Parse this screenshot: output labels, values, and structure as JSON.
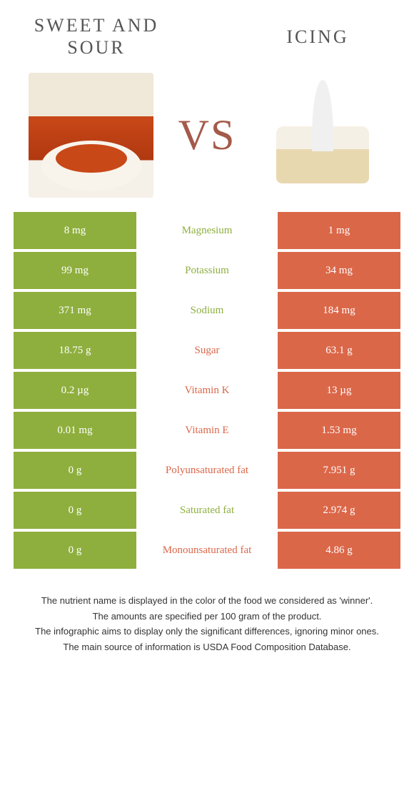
{
  "header": {
    "left_title": "SWEET AND SOUR",
    "right_title": "ICING",
    "vs": "VS"
  },
  "colors": {
    "left": "#8eaf3e",
    "right": "#db6749",
    "vs_text": "#a45a4a"
  },
  "rows": [
    {
      "left": "8 mg",
      "label": "Magnesium",
      "right": "1 mg",
      "winner": "left"
    },
    {
      "left": "99 mg",
      "label": "Potassium",
      "right": "34 mg",
      "winner": "left"
    },
    {
      "left": "371 mg",
      "label": "Sodium",
      "right": "184 mg",
      "winner": "left"
    },
    {
      "left": "18.75 g",
      "label": "Sugar",
      "right": "63.1 g",
      "winner": "right"
    },
    {
      "left": "0.2 µg",
      "label": "Vitamin K",
      "right": "13 µg",
      "winner": "right"
    },
    {
      "left": "0.01 mg",
      "label": "Vitamin E",
      "right": "1.53 mg",
      "winner": "right"
    },
    {
      "left": "0 g",
      "label": "Polyunsaturated fat",
      "right": "7.951 g",
      "winner": "right"
    },
    {
      "left": "0 g",
      "label": "Saturated fat",
      "right": "2.974 g",
      "winner": "left"
    },
    {
      "left": "0 g",
      "label": "Monounsaturated fat",
      "right": "4.86 g",
      "winner": "right"
    }
  ],
  "footer": [
    "The nutrient name is displayed in the color of the food we considered as 'winner'.",
    "The amounts are specified per 100 gram of the product.",
    "The infographic aims to display only the significant differences, ignoring minor ones.",
    "The main source of information is USDA Food Composition Database."
  ]
}
